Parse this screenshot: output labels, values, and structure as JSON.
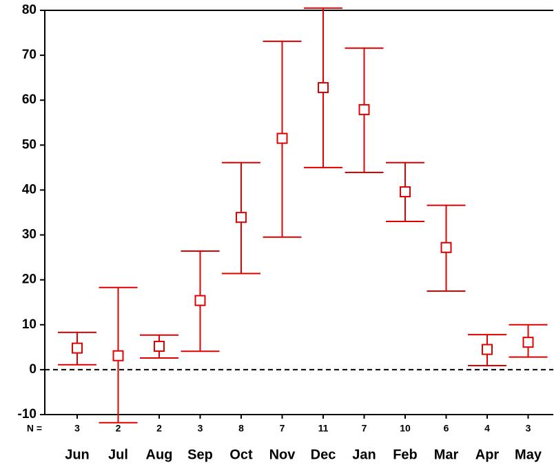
{
  "chart_data": {
    "type": "errorbar",
    "categories": [
      "Jun",
      "Jul",
      "Aug",
      "Sep",
      "Oct",
      "Nov",
      "Dec",
      "Jan",
      "Feb",
      "Mar",
      "Apr",
      "May"
    ],
    "n_label": "N =",
    "n": [
      3,
      2,
      2,
      3,
      8,
      7,
      11,
      7,
      10,
      6,
      4,
      3
    ],
    "values": [
      4.8,
      3.1,
      5.2,
      15.4,
      33.9,
      51.5,
      62.8,
      57.9,
      39.6,
      27.2,
      4.5,
      6.1
    ],
    "lower": [
      1.1,
      -11.8,
      2.6,
      4.1,
      21.4,
      29.5,
      45.0,
      43.9,
      33.0,
      17.5,
      0.9,
      2.8
    ],
    "upper": [
      8.3,
      18.3,
      7.7,
      26.4,
      46.1,
      73.1,
      80.5,
      71.6,
      46.1,
      36.6,
      7.8,
      10.0
    ],
    "color": "#e00000",
    "ylim": [
      -10,
      80
    ],
    "yticks": [
      -10,
      0,
      10,
      20,
      30,
      40,
      50,
      60,
      70,
      80
    ],
    "reference_line": 0
  }
}
